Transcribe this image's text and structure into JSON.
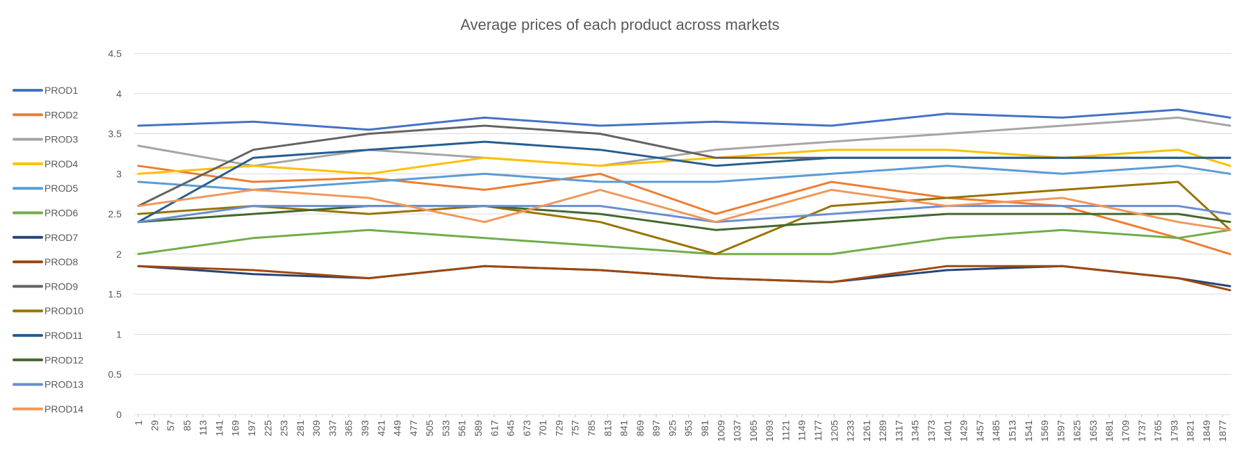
{
  "chart_data": {
    "type": "line",
    "title": "Average prices of each product across markets",
    "xlabel": "",
    "ylabel": "",
    "ylim": [
      0,
      4.5
    ],
    "yticks": [
      "0",
      "0.5",
      "1",
      "1.5",
      "2",
      "2.5",
      "3",
      "3.5",
      "4",
      "4.5"
    ],
    "xlim": [
      1,
      1890
    ],
    "xticks": [
      "1",
      "29",
      "57",
      "85",
      "113",
      "141",
      "169",
      "197",
      "225",
      "253",
      "281",
      "309",
      "337",
      "365",
      "393",
      "421",
      "449",
      "477",
      "505",
      "533",
      "561",
      "589",
      "617",
      "645",
      "673",
      "701",
      "729",
      "757",
      "785",
      "813",
      "841",
      "869",
      "897",
      "925",
      "953",
      "981",
      "1009",
      "1037",
      "1065",
      "1093",
      "1121",
      "1149",
      "1177",
      "1205",
      "1233",
      "1261",
      "1289",
      "1317",
      "1345",
      "1373",
      "1401",
      "1429",
      "1457",
      "1485",
      "1513",
      "1541",
      "1569",
      "1597",
      "1625",
      "1653",
      "1681",
      "1709",
      "1737",
      "1765",
      "1793",
      "1821",
      "1849",
      "1877"
    ],
    "grid": "horizontal",
    "legend": "left",
    "series": [
      {
        "name": "PROD1",
        "color": "#4472C4",
        "x": [
          1,
          200,
          400,
          600,
          800,
          1000,
          1200,
          1400,
          1600,
          1800,
          1890
        ],
        "values": [
          3.6,
          3.65,
          3.55,
          3.7,
          3.6,
          3.65,
          3.6,
          3.75,
          3.7,
          3.8,
          3.7
        ]
      },
      {
        "name": "PROD2",
        "color": "#ED7D31",
        "x": [
          1,
          200,
          400,
          600,
          800,
          1000,
          1200,
          1400,
          1600,
          1800,
          1890
        ],
        "values": [
          3.1,
          2.9,
          2.95,
          2.8,
          3.0,
          2.5,
          2.9,
          2.7,
          2.6,
          2.2,
          2.0
        ]
      },
      {
        "name": "PROD3",
        "color": "#A5A5A5",
        "x": [
          1,
          200,
          400,
          600,
          800,
          1000,
          1200,
          1400,
          1600,
          1800,
          1890
        ],
        "values": [
          3.35,
          3.1,
          3.3,
          3.2,
          3.1,
          3.3,
          3.4,
          3.5,
          3.6,
          3.7,
          3.6
        ]
      },
      {
        "name": "PROD4",
        "color": "#FFC000",
        "x": [
          1,
          200,
          400,
          600,
          800,
          1000,
          1200,
          1400,
          1600,
          1800,
          1890
        ],
        "values": [
          3.0,
          3.1,
          3.0,
          3.2,
          3.1,
          3.2,
          3.3,
          3.3,
          3.2,
          3.3,
          3.1
        ]
      },
      {
        "name": "PROD5",
        "color": "#5B9BD5",
        "x": [
          1,
          200,
          400,
          600,
          800,
          1000,
          1200,
          1400,
          1600,
          1800,
          1890
        ],
        "values": [
          2.9,
          2.8,
          2.9,
          3.0,
          2.9,
          2.9,
          3.0,
          3.1,
          3.0,
          3.1,
          3.0
        ]
      },
      {
        "name": "PROD6",
        "color": "#70AD47",
        "x": [
          1,
          200,
          400,
          600,
          800,
          1000,
          1200,
          1400,
          1600,
          1800,
          1890
        ],
        "values": [
          2.0,
          2.2,
          2.3,
          2.2,
          2.1,
          2.0,
          2.0,
          2.2,
          2.3,
          2.2,
          2.3
        ]
      },
      {
        "name": "PROD7",
        "color": "#264478",
        "x": [
          1,
          200,
          400,
          600,
          800,
          1000,
          1200,
          1400,
          1600,
          1800,
          1890
        ],
        "values": [
          1.85,
          1.75,
          1.7,
          1.85,
          1.8,
          1.7,
          1.65,
          1.8,
          1.85,
          1.7,
          1.6
        ]
      },
      {
        "name": "PROD8",
        "color": "#9E480E",
        "x": [
          1,
          200,
          400,
          600,
          800,
          1000,
          1200,
          1400,
          1600,
          1800,
          1890
        ],
        "values": [
          1.85,
          1.8,
          1.7,
          1.85,
          1.8,
          1.7,
          1.65,
          1.85,
          1.85,
          1.7,
          1.55
        ]
      },
      {
        "name": "PROD9",
        "color": "#636363",
        "x": [
          1,
          200,
          400,
          600,
          800,
          1000,
          1200,
          1400,
          1600,
          1800,
          1890
        ],
        "values": [
          2.6,
          3.3,
          3.5,
          3.6,
          3.5,
          3.2,
          3.2,
          3.2,
          3.2,
          3.2,
          3.2
        ]
      },
      {
        "name": "PROD10",
        "color": "#997300",
        "x": [
          1,
          200,
          400,
          600,
          800,
          1000,
          1200,
          1400,
          1600,
          1800,
          1890
        ],
        "values": [
          2.5,
          2.6,
          2.5,
          2.6,
          2.4,
          2.0,
          2.6,
          2.7,
          2.8,
          2.9,
          2.3
        ]
      },
      {
        "name": "PROD11",
        "color": "#255E91",
        "x": [
          1,
          200,
          400,
          600,
          800,
          1000,
          1200,
          1400,
          1600,
          1800,
          1890
        ],
        "values": [
          2.4,
          3.2,
          3.3,
          3.4,
          3.3,
          3.1,
          3.2,
          3.2,
          3.2,
          3.2,
          3.2
        ]
      },
      {
        "name": "PROD12",
        "color": "#43682B",
        "x": [
          1,
          200,
          400,
          600,
          800,
          1000,
          1200,
          1400,
          1600,
          1800,
          1890
        ],
        "values": [
          2.4,
          2.5,
          2.6,
          2.6,
          2.5,
          2.3,
          2.4,
          2.5,
          2.5,
          2.5,
          2.4
        ]
      },
      {
        "name": "PROD13",
        "color": "#698ED0",
        "x": [
          1,
          200,
          400,
          600,
          800,
          1000,
          1200,
          1400,
          1600,
          1800,
          1890
        ],
        "values": [
          2.4,
          2.6,
          2.6,
          2.6,
          2.6,
          2.4,
          2.5,
          2.6,
          2.6,
          2.6,
          2.5
        ]
      },
      {
        "name": "PROD14",
        "color": "#F1975A",
        "x": [
          1,
          200,
          400,
          600,
          800,
          1000,
          1200,
          1400,
          1600,
          1800,
          1890
        ],
        "values": [
          2.6,
          2.8,
          2.7,
          2.4,
          2.8,
          2.4,
          2.8,
          2.6,
          2.7,
          2.4,
          2.3
        ]
      }
    ]
  }
}
